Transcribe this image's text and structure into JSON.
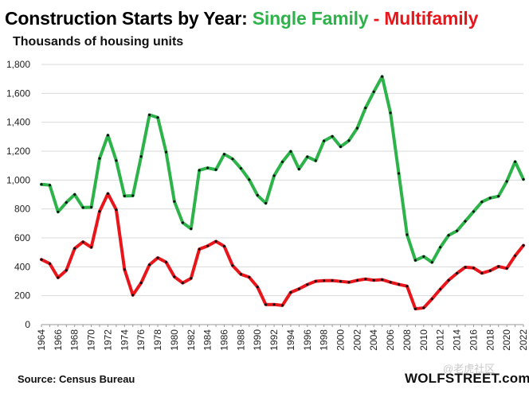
{
  "title": {
    "part1": "Construction  Starts by Year: ",
    "single": "Single Family",
    "sep": " - ",
    "multi": "Multifamily"
  },
  "subtitle": "Thousands of housing units",
  "source": "Source: Census Bureau",
  "brand": "WOLFSTREET.com",
  "watermark": "@老虎社区",
  "colors": {
    "single": "#2db34a",
    "multi": "#e8151b",
    "markers": "#111111",
    "grid": "#d9d9d9",
    "axis": "#999999"
  },
  "chart_data": {
    "type": "line",
    "title": "Construction  Starts by Year: Single Family - Multifamily",
    "ylabel": "Thousands of housing units",
    "xlabel": "",
    "x": [
      1964,
      1965,
      1966,
      1967,
      1968,
      1969,
      1970,
      1971,
      1972,
      1973,
      1974,
      1975,
      1976,
      1977,
      1978,
      1979,
      1980,
      1981,
      1982,
      1983,
      1984,
      1985,
      1986,
      1987,
      1988,
      1989,
      1990,
      1991,
      1992,
      1993,
      1994,
      1995,
      1996,
      1997,
      1998,
      1999,
      2000,
      2001,
      2002,
      2003,
      2004,
      2005,
      2006,
      2007,
      2008,
      2009,
      2010,
      2011,
      2012,
      2013,
      2014,
      2015,
      2016,
      2017,
      2018,
      2019,
      2020,
      2021,
      2022
    ],
    "xticks": [
      1964,
      1966,
      1968,
      1970,
      1972,
      1974,
      1976,
      1978,
      1980,
      1982,
      1984,
      1986,
      1988,
      1990,
      1992,
      1994,
      1996,
      1998,
      2000,
      2002,
      2004,
      2006,
      2008,
      2010,
      2012,
      2014,
      2016,
      2018,
      2020,
      2022
    ],
    "yticks": [
      0,
      200,
      400,
      600,
      800,
      1000,
      1200,
      1400,
      1600,
      1800
    ],
    "ytick_labels": [
      "0",
      "200",
      "400",
      "600",
      "800",
      "1,000",
      "1,200",
      "1,400",
      "1,600",
      "1,800"
    ],
    "ylim": [
      0,
      1800
    ],
    "grid": "horizontal",
    "series": [
      {
        "name": "Single Family",
        "color": "#2db34a",
        "values": [
          970,
          965,
          780,
          845,
          900,
          810,
          812,
          1150,
          1310,
          1135,
          890,
          892,
          1163,
          1451,
          1433,
          1194,
          852,
          705,
          663,
          1068,
          1084,
          1072,
          1179,
          1146,
          1081,
          1003,
          895,
          840,
          1030,
          1126,
          1198,
          1076,
          1161,
          1134,
          1271,
          1302,
          1231,
          1273,
          1359,
          1499,
          1611,
          1716,
          1465,
          1046,
          622,
          445,
          471,
          431,
          535,
          618,
          648,
          715,
          782,
          849,
          876,
          888,
          991,
          1127,
          1005
        ]
      },
      {
        "name": "Multifamily",
        "color": "#e8151b",
        "values": [
          450,
          422,
          325,
          376,
          527,
          572,
          535,
          783,
          906,
          795,
          381,
          204,
          289,
          414,
          462,
          432,
          331,
          288,
          320,
          522,
          544,
          576,
          542,
          409,
          348,
          328,
          260,
          138,
          139,
          133,
          223,
          247,
          277,
          300,
          304,
          305,
          299,
          293,
          306,
          315,
          307,
          311,
          293,
          278,
          266,
          109,
          116,
          178,
          245,
          307,
          355,
          397,
          392,
          356,
          373,
          402,
          389,
          476,
          548
        ]
      }
    ]
  }
}
